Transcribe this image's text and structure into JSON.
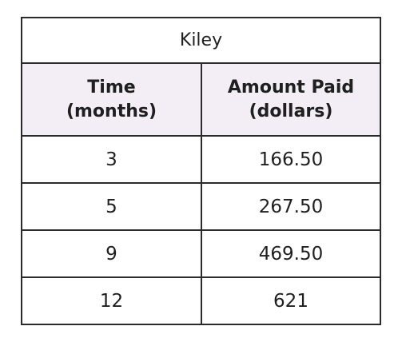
{
  "table": {
    "title": "Kiley",
    "headers": [
      {
        "line1": "Time",
        "line2": "(months)"
      },
      {
        "line1": "Amount Paid",
        "line2": "(dollars)"
      }
    ],
    "rows": [
      [
        "3",
        "166.50"
      ],
      [
        "5",
        "267.50"
      ],
      [
        "9",
        "469.50"
      ],
      [
        "12",
        "621"
      ]
    ]
  }
}
